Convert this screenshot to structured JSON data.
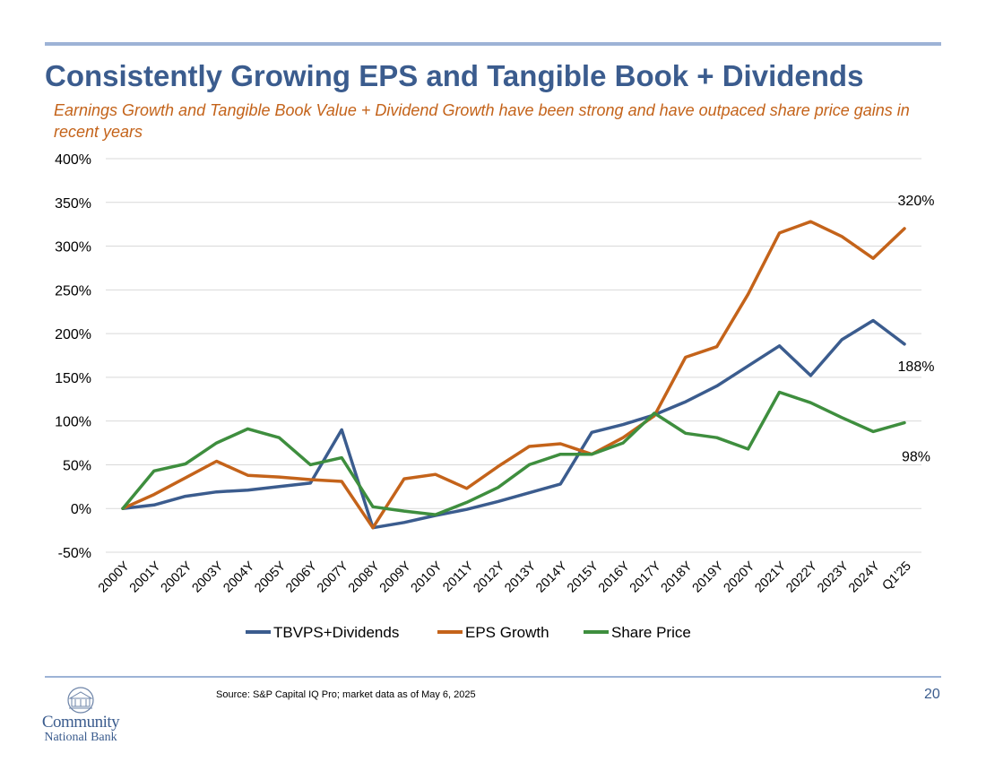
{
  "slide": {
    "title": "Consistently Growing EPS and Tangible Book + Dividends",
    "subtitle": "Earnings Growth and Tangible Book Value + Dividend Growth have been strong and have outpaced share price gains in recent years",
    "source": "Source: S&P Capital IQ Pro; market data as of May 6, 2025",
    "page_number": "20",
    "logo": {
      "line1": "Community",
      "line2": "National Bank"
    }
  },
  "colors": {
    "title": "#3b5c8e",
    "subtitle": "#c4631a",
    "rule": "#9db3d6"
  },
  "chart_data": {
    "type": "line",
    "categories": [
      "2000Y",
      "2001Y",
      "2002Y",
      "2003Y",
      "2004Y",
      "2005Y",
      "2006Y",
      "2007Y",
      "2008Y",
      "2009Y",
      "2010Y",
      "2011Y",
      "2012Y",
      "2013Y",
      "2014Y",
      "2015Y",
      "2016Y",
      "2017Y",
      "2018Y",
      "2019Y",
      "2020Y",
      "2021Y",
      "2022Y",
      "2023Y",
      "2024Y",
      "Q1'25"
    ],
    "ylim": [
      -50,
      400
    ],
    "y_ticks": [
      -50,
      0,
      50,
      100,
      150,
      200,
      250,
      300,
      350,
      400
    ],
    "y_tick_labels": [
      "-50%",
      "0%",
      "50%",
      "100%",
      "150%",
      "200%",
      "250%",
      "300%",
      "350%",
      "400%"
    ],
    "grid": true,
    "legend_position": "bottom",
    "series": [
      {
        "name": "TBVPS+Dividends",
        "color": "#3b5c8e",
        "values": [
          0,
          4,
          14,
          19,
          21,
          25,
          29,
          90,
          -22,
          -16,
          -8,
          -1,
          8,
          18,
          28,
          87,
          96,
          107,
          122,
          140,
          163,
          186,
          152,
          193,
          215,
          188
        ],
        "end_label": "188%"
      },
      {
        "name": "EPS Growth",
        "color": "#c4631a",
        "values": [
          0,
          16,
          35,
          54,
          38,
          36,
          33,
          31,
          -22,
          34,
          39,
          23,
          48,
          71,
          74,
          62,
          81,
          106,
          173,
          185,
          245,
          315,
          328,
          311,
          286,
          320
        ],
        "end_label": "320%"
      },
      {
        "name": "Share Price",
        "color": "#3e8e3e",
        "values": [
          0,
          43,
          51,
          75,
          91,
          81,
          50,
          58,
          2,
          -3,
          -7,
          7,
          24,
          50,
          62,
          62,
          75,
          109,
          86,
          81,
          68,
          133,
          121,
          104,
          88,
          98
        ],
        "end_label": "98%"
      }
    ]
  }
}
